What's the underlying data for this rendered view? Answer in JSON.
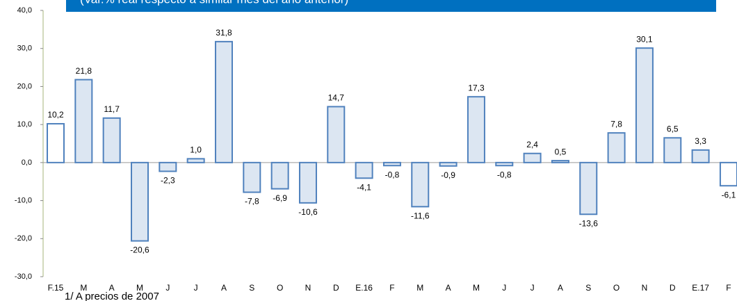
{
  "chart_data": {
    "type": "bar",
    "subtitle": "(Var.% real respecto a similar mes del año anterior)",
    "footnote": "1/ A precios de 2007",
    "categories": [
      "F.15",
      "M",
      "A",
      "M",
      "J",
      "J",
      "A",
      "S",
      "O",
      "N",
      "D",
      "E.16",
      "F",
      "M",
      "A",
      "M",
      "J",
      "J",
      "A",
      "S",
      "O",
      "N",
      "D",
      "E.17",
      "F"
    ],
    "values": [
      10.2,
      21.8,
      11.7,
      -20.6,
      -2.3,
      1.0,
      31.8,
      -7.8,
      -6.9,
      -10.6,
      14.7,
      -4.1,
      -0.8,
      -11.6,
      -0.9,
      17.3,
      -0.8,
      2.4,
      0.5,
      -13.6,
      7.8,
      30.1,
      6.5,
      3.3,
      -6.1
    ],
    "value_labels": [
      "10,2",
      "21,8",
      "11,7",
      "-20,6",
      "-2,3",
      "1,0",
      "31,8",
      "-7,8",
      "-6,9",
      "-10,6",
      "14,7",
      "-4,1",
      "-0,8",
      "-11,6",
      "-0,9",
      "17,3",
      "-0,8",
      "2,4",
      "0,5",
      "-13,6",
      "7,8",
      "30,1",
      "6,5",
      "3,3",
      "-6,1"
    ],
    "colors": [
      "#ffffff",
      "#dce6f2",
      "#dce6f2",
      "#dce6f2",
      "#dce6f2",
      "#dce6f2",
      "#dce6f2",
      "#dce6f2",
      "#dce6f2",
      "#dce6f2",
      "#dce6f2",
      "#dce6f2",
      "#dce6f2",
      "#dce6f2",
      "#dce6f2",
      "#dce6f2",
      "#dce6f2",
      "#dce6f2",
      "#dce6f2",
      "#dce6f2",
      "#dce6f2",
      "#dce6f2",
      "#dce6f2",
      "#dce6f2",
      "#ffffff"
    ],
    "edge_color": "#4f81bd",
    "ylim": [
      -30,
      40
    ],
    "yticks": [
      {
        "value": -30,
        "label": "-30,0"
      },
      {
        "value": -20,
        "label": "-20,0"
      },
      {
        "value": -10,
        "label": "-10,0"
      },
      {
        "value": 0,
        "label": "0,0"
      },
      {
        "value": 10,
        "label": "10,0"
      },
      {
        "value": 20,
        "label": "20,0"
      },
      {
        "value": 30,
        "label": "30,0"
      },
      {
        "value": 40,
        "label": "40,0"
      }
    ],
    "grid": false
  }
}
